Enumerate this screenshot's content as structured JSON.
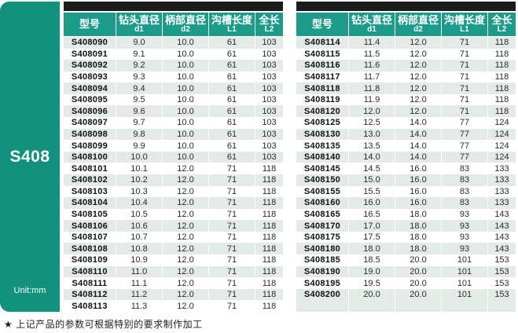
{
  "sidebar": {
    "series_label": "S408",
    "unit_label": "Unit:mm"
  },
  "footnote": "★ 上记产品的参数可根据特别的要求制作加工",
  "colors": {
    "teal_sidebar": "#12917f",
    "teal_header": "#1d9a89",
    "row_alt": "#e4ebe7",
    "top_bar": "#1b1b1b"
  },
  "columns": [
    {
      "label": "型号",
      "sub": ""
    },
    {
      "label": "钻头直径",
      "sub": "d1"
    },
    {
      "label": "柄部直径",
      "sub": "d2"
    },
    {
      "label": "沟槽长度",
      "sub": "L1"
    },
    {
      "label": "全长",
      "sub": "L2"
    }
  ],
  "tables": [
    {
      "trailing_empty_rows": 0,
      "rows": [
        [
          "S408090",
          "9.0",
          "10.0",
          "61",
          "103"
        ],
        [
          "S408091",
          "9.1",
          "10.0",
          "61",
          "103"
        ],
        [
          "S408092",
          "9.2",
          "10.0",
          "61",
          "103"
        ],
        [
          "S408093",
          "9.3",
          "10.0",
          "61",
          "103"
        ],
        [
          "S408094",
          "9.4",
          "10.0",
          "61",
          "103"
        ],
        [
          "S408095",
          "9.5",
          "10.0",
          "61",
          "103"
        ],
        [
          "S408096",
          "9.6",
          "10.0",
          "61",
          "103"
        ],
        [
          "S408097",
          "9.7",
          "10.0",
          "61",
          "103"
        ],
        [
          "S408098",
          "9.8",
          "10.0",
          "61",
          "103"
        ],
        [
          "S408099",
          "9.9",
          "10.0",
          "61",
          "103"
        ],
        [
          "S408100",
          "10.0",
          "10.0",
          "61",
          "103"
        ],
        [
          "S408101",
          "10.1",
          "12.0",
          "71",
          "118"
        ],
        [
          "S408102",
          "10.2",
          "12.0",
          "71",
          "118"
        ],
        [
          "S408103",
          "10.3",
          "12.0",
          "71",
          "118"
        ],
        [
          "S408104",
          "10.4",
          "12.0",
          "71",
          "118"
        ],
        [
          "S408105",
          "10.5",
          "12.0",
          "71",
          "118"
        ],
        [
          "S408106",
          "10.6",
          "12.0",
          "71",
          "118"
        ],
        [
          "S408107",
          "10.7",
          "12.0",
          "71",
          "118"
        ],
        [
          "S408108",
          "10.8",
          "12.0",
          "71",
          "118"
        ],
        [
          "S408109",
          "10.9",
          "12.0",
          "71",
          "118"
        ],
        [
          "S408110",
          "11.0",
          "12.0",
          "71",
          "118"
        ],
        [
          "S408111",
          "11.1",
          "12.0",
          "71",
          "118"
        ],
        [
          "S408112",
          "11.2",
          "12.0",
          "71",
          "118"
        ],
        [
          "S408113",
          "11.3",
          "12.0",
          "71",
          "118"
        ]
      ]
    },
    {
      "trailing_empty_rows": 1,
      "rows": [
        [
          "S408114",
          "11.4",
          "12.0",
          "71",
          "118"
        ],
        [
          "S408115",
          "11.5",
          "12.0",
          "71",
          "118"
        ],
        [
          "S408116",
          "11.6",
          "12.0",
          "71",
          "118"
        ],
        [
          "S408117",
          "11.7",
          "12.0",
          "71",
          "118"
        ],
        [
          "S408118",
          "11.8",
          "12.0",
          "71",
          "118"
        ],
        [
          "S408119",
          "11.9",
          "12.0",
          "71",
          "118"
        ],
        [
          "S408120",
          "12.0",
          "12.0",
          "71",
          "118"
        ],
        [
          "S408125",
          "12.5",
          "14.0",
          "77",
          "124"
        ],
        [
          "S408130",
          "13.0",
          "14.0",
          "77",
          "124"
        ],
        [
          "S408135",
          "13.5",
          "14.0",
          "77",
          "124"
        ],
        [
          "S408140",
          "14.0",
          "14.0",
          "77",
          "124"
        ],
        [
          "S408145",
          "14.5",
          "16.0",
          "83",
          "133"
        ],
        [
          "S408150",
          "15.0",
          "16.0",
          "83",
          "133"
        ],
        [
          "S408155",
          "15.5",
          "16.0",
          "83",
          "133"
        ],
        [
          "S408160",
          "16.0",
          "16.0",
          "83",
          "133"
        ],
        [
          "S408165",
          "16.5",
          "18.0",
          "93",
          "143"
        ],
        [
          "S408170",
          "17.0",
          "18.0",
          "93",
          "143"
        ],
        [
          "S408175",
          "17.5",
          "18.0",
          "93",
          "143"
        ],
        [
          "S408180",
          "18.0",
          "18.0",
          "93",
          "143"
        ],
        [
          "S408185",
          "18.5",
          "20.0",
          "101",
          "153"
        ],
        [
          "S408190",
          "19.0",
          "20.0",
          "101",
          "153"
        ],
        [
          "S408195",
          "19.5",
          "20.0",
          "101",
          "153"
        ],
        [
          "S408200",
          "20.0",
          "20.0",
          "101",
          "153"
        ]
      ]
    }
  ]
}
